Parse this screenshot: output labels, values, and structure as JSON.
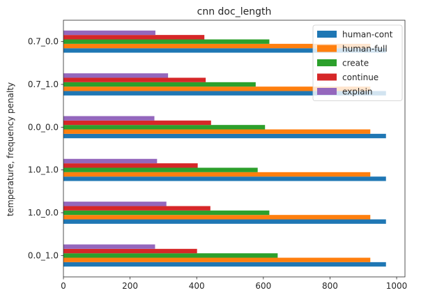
{
  "chart_data": {
    "type": "bar",
    "orientation": "horizontal",
    "title": "cnn doc_length",
    "xlabel": "",
    "ylabel": "temperature, frequency penalty",
    "categories": [
      "0.0_1.0",
      "1.0_0.0",
      "1.0_1.0",
      "0.0_0.0",
      "0.7_1.0",
      "0.7_0.0"
    ],
    "xlim": [
      0,
      1025
    ],
    "xticks": [
      0,
      200,
      400,
      600,
      800,
      1000
    ],
    "grid": false,
    "legend_position": "top-right",
    "series": [
      {
        "name": "human-cont",
        "color": "#1f77b4",
        "values": [
          968,
          968,
          968,
          968,
          968,
          968
        ]
      },
      {
        "name": "human-full",
        "color": "#ff7f0e",
        "values": [
          921,
          921,
          921,
          921,
          921,
          921
        ]
      },
      {
        "name": "create",
        "color": "#2ca02c",
        "values": [
          643,
          618,
          583,
          605,
          577,
          618
        ]
      },
      {
        "name": "continue",
        "color": "#d62728",
        "values": [
          401,
          441,
          403,
          443,
          427,
          423
        ]
      },
      {
        "name": "explain",
        "color": "#9467bd",
        "values": [
          275,
          309,
          281,
          273,
          314,
          276
        ]
      }
    ]
  }
}
